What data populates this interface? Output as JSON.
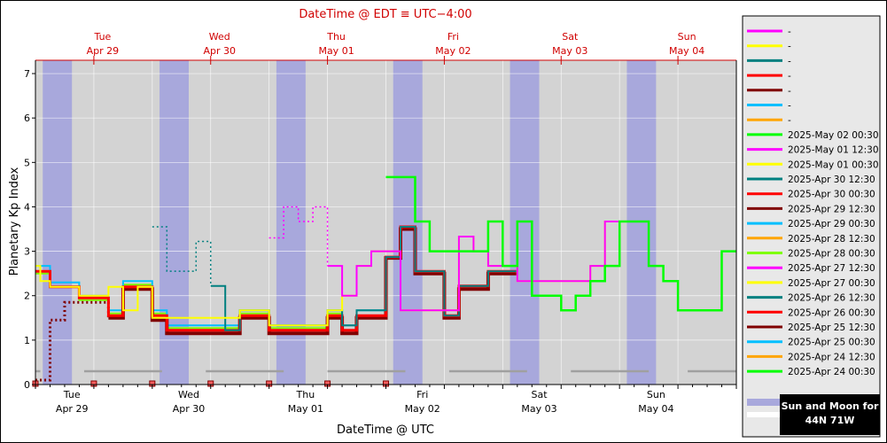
{
  "chart_data": {
    "type": "line",
    "title": "DateTime @ EDT ≡ UTC−4:00",
    "xlabel": "DateTime @ UTC",
    "ylabel": "Planetary Kp Index",
    "ylim": [
      0,
      7.3
    ],
    "y_ticks": [
      "0",
      "1",
      "2",
      "3",
      "4",
      "5",
      "6",
      "7"
    ],
    "x_range_hours": [
      0,
      144
    ],
    "top_ticks": [
      {
        "day": "Tue",
        "date": "Apr 29",
        "hour": 12
      },
      {
        "day": "Wed",
        "date": "Apr 30",
        "hour": 36
      },
      {
        "day": "Thu",
        "date": "May 01",
        "hour": 60
      },
      {
        "day": "Fri",
        "date": "May 02",
        "hour": 84
      },
      {
        "day": "Sat",
        "date": "May 03",
        "hour": 108
      },
      {
        "day": "Sun",
        "date": "May 04",
        "hour": 132
      }
    ],
    "bottom_ticks": [
      {
        "day": "Tue",
        "date": "Apr 29",
        "hour": 0
      },
      {
        "day": "Wed",
        "date": "Apr 30",
        "hour": 24
      },
      {
        "day": "Thu",
        "date": "May 01",
        "hour": 48
      },
      {
        "day": "Fri",
        "date": "May 02",
        "hour": 72
      },
      {
        "day": "Sat",
        "date": "May 03",
        "hour": 96
      },
      {
        "day": "Sun",
        "date": "May 04",
        "hour": 120
      }
    ],
    "night_bands_hours": [
      [
        1.5,
        7.5
      ],
      [
        25.5,
        31.5
      ],
      [
        49.5,
        55.5
      ],
      [
        73.5,
        79.5
      ],
      [
        97.5,
        103.5
      ],
      [
        121.5,
        127.5
      ]
    ],
    "legend": {
      "placeholder_entries": [
        {
          "name": "-",
          "color": "#ff00ff"
        },
        {
          "name": "-",
          "color": "#ffff00"
        },
        {
          "name": "-",
          "color": "#008080"
        },
        {
          "name": "-",
          "color": "#ff0000"
        },
        {
          "name": "-",
          "color": "#800000"
        },
        {
          "name": "-",
          "color": "#00bfff"
        },
        {
          "name": "-",
          "color": "#ffa500"
        }
      ],
      "footer_label_line1": "Sun and Moon for",
      "footer_label_line2": "44N 71W"
    },
    "series": [
      {
        "name": "2025-May 02 00:30",
        "color": "#00ff00",
        "style": "solid",
        "width": 2.5,
        "points": [
          [
            72,
            4.67
          ],
          [
            78,
            3.67
          ],
          [
            81,
            3.0
          ],
          [
            93,
            3.67
          ],
          [
            96,
            2.67
          ],
          [
            99,
            3.67
          ],
          [
            102,
            2.0
          ],
          [
            108,
            1.67
          ],
          [
            111,
            2.0
          ],
          [
            114,
            2.33
          ],
          [
            117,
            2.67
          ],
          [
            120,
            3.67
          ],
          [
            126,
            2.67
          ],
          [
            129,
            2.33
          ],
          [
            132,
            1.67
          ],
          [
            141,
            3.0
          ],
          [
            144,
            3.0
          ]
        ]
      },
      {
        "name": "2025-May 01 12:30",
        "color": "#ff00ff",
        "style": "mixed",
        "width": 2,
        "dotted_until": 60,
        "points": [
          [
            48,
            3.3
          ],
          [
            51,
            4.0
          ],
          [
            54,
            3.67
          ],
          [
            57,
            4.0
          ],
          [
            60,
            2.67
          ],
          [
            63,
            2.0
          ],
          [
            66,
            2.67
          ],
          [
            69,
            3.0
          ],
          [
            75,
            1.67
          ],
          [
            87,
            3.33
          ],
          [
            90,
            3.0
          ],
          [
            93,
            2.67
          ],
          [
            99,
            2.33
          ],
          [
            114,
            2.67
          ],
          [
            117,
            3.67
          ],
          [
            120,
            3.67
          ]
        ]
      },
      {
        "name": "2025-May 01 00:30",
        "color": "#ffff00",
        "style": "solid",
        "width": 2,
        "points": [
          [
            0,
            2.67
          ],
          [
            1,
            2.33
          ],
          [
            3,
            2.2
          ],
          [
            9,
            2.0
          ],
          [
            15,
            2.2
          ],
          [
            18,
            1.67
          ],
          [
            21,
            2.2
          ],
          [
            24,
            1.5
          ],
          [
            36,
            1.5
          ],
          [
            42,
            1.67
          ],
          [
            48,
            1.33
          ],
          [
            60,
            1.67
          ],
          [
            63,
            2.0
          ],
          [
            66,
            2.67
          ],
          [
            69,
            3.0
          ],
          [
            75,
            1.67
          ],
          [
            87,
            3.33
          ],
          [
            90,
            3.0
          ],
          [
            93,
            2.67
          ],
          [
            99,
            2.33
          ],
          [
            114,
            2.67
          ],
          [
            117,
            3.67
          ],
          [
            120,
            3.67
          ]
        ]
      },
      {
        "name": "2025-Apr 30 12:30",
        "color": "#008080",
        "style": "mixed",
        "width": 2,
        "dotted_until": 36,
        "points": [
          [
            24,
            3.55
          ],
          [
            27,
            2.55
          ],
          [
            33,
            3.22
          ],
          [
            36,
            2.22
          ],
          [
            39,
            1.22
          ],
          [
            42,
            1.67
          ],
          [
            48,
            1.33
          ],
          [
            60,
            1.67
          ],
          [
            63,
            1.33
          ],
          [
            66,
            1.67
          ],
          [
            72,
            2.87
          ],
          [
            75,
            3.55
          ],
          [
            78,
            2.55
          ],
          [
            84,
            1.55
          ],
          [
            87,
            2.22
          ],
          [
            93,
            2.55
          ],
          [
            96,
            2.55
          ]
        ]
      },
      {
        "name": "2025-Apr 30 00:30",
        "color": "#ff0000",
        "style": "solid",
        "width": 3,
        "points": [
          [
            0,
            2.55
          ],
          [
            3,
            2.2
          ],
          [
            9,
            1.95
          ],
          [
            15,
            1.55
          ],
          [
            18,
            2.2
          ],
          [
            24,
            1.55
          ],
          [
            27,
            1.22
          ],
          [
            42,
            1.55
          ],
          [
            48,
            1.22
          ],
          [
            60,
            1.55
          ],
          [
            63,
            1.22
          ],
          [
            66,
            1.55
          ],
          [
            72,
            2.87
          ],
          [
            75,
            3.55
          ],
          [
            78,
            2.55
          ],
          [
            84,
            1.55
          ],
          [
            87,
            2.22
          ],
          [
            93,
            2.55
          ],
          [
            96,
            2.55
          ]
        ]
      },
      {
        "name": "2025-Apr 29 12:30",
        "color": "#800000",
        "style": "mixed",
        "width": 4,
        "dotted_until": 12,
        "points": [
          [
            0,
            0.1
          ],
          [
            3,
            1.45
          ],
          [
            6,
            1.85
          ],
          [
            9,
            1.85
          ],
          [
            15,
            1.5
          ],
          [
            18,
            2.15
          ],
          [
            24,
            1.45
          ],
          [
            27,
            1.15
          ],
          [
            42,
            1.5
          ],
          [
            48,
            1.15
          ],
          [
            60,
            1.5
          ],
          [
            63,
            1.15
          ],
          [
            66,
            1.5
          ],
          [
            72,
            2.85
          ],
          [
            75,
            3.5
          ],
          [
            78,
            2.5
          ],
          [
            84,
            1.5
          ],
          [
            87,
            2.15
          ],
          [
            93,
            2.5
          ],
          [
            96,
            2.5
          ]
        ]
      },
      {
        "name": "2025-Apr 29 00:30",
        "color": "#00bfff",
        "style": "solid",
        "width": 2,
        "points": [
          [
            0,
            2.67
          ],
          [
            3,
            2.3
          ],
          [
            9,
            2.0
          ],
          [
            15,
            1.67
          ],
          [
            18,
            2.33
          ],
          [
            24,
            1.67
          ],
          [
            27,
            1.33
          ],
          [
            42,
            1.67
          ],
          [
            48,
            1.33
          ],
          [
            60,
            1.67
          ],
          [
            63,
            1.33
          ],
          [
            66,
            1.67
          ],
          [
            72,
            2.87
          ],
          [
            75,
            3.55
          ],
          [
            78,
            2.55
          ],
          [
            84,
            1.55
          ],
          [
            87,
            2.22
          ],
          [
            93,
            2.55
          ],
          [
            96,
            2.55
          ]
        ]
      },
      {
        "name": "2025-Apr 28 12:30",
        "color": "#ffa500",
        "style": "solid",
        "width": 2,
        "points": []
      },
      {
        "name": "2025-Apr 28 00:30",
        "color": "#7fff00",
        "style": "solid",
        "width": 2,
        "points": [
          [
            0,
            2.5
          ],
          [
            3,
            2.2
          ],
          [
            9,
            1.9
          ],
          [
            15,
            1.6
          ],
          [
            18,
            2.25
          ],
          [
            24,
            1.6
          ],
          [
            27,
            1.27
          ],
          [
            42,
            1.6
          ],
          [
            48,
            1.27
          ],
          [
            60,
            1.6
          ]
        ]
      },
      {
        "name": "2025-Apr 27 12:30",
        "color": "#ff00ff",
        "style": "solid",
        "width": 2,
        "points": []
      },
      {
        "name": "2025-Apr 27 00:30",
        "color": "#ffff00",
        "style": "solid",
        "width": 2,
        "points": []
      },
      {
        "name": "2025-Apr 26 12:30",
        "color": "#008080",
        "style": "solid",
        "width": 2,
        "points": []
      },
      {
        "name": "2025-Apr 26 00:30",
        "color": "#ff0000",
        "style": "solid",
        "width": 2,
        "points": []
      },
      {
        "name": "2025-Apr 25 12:30",
        "color": "#800000",
        "style": "solid",
        "width": 2,
        "points": []
      },
      {
        "name": "2025-Apr 25 00:30",
        "color": "#00bfff",
        "style": "solid",
        "width": 2,
        "points": []
      },
      {
        "name": "2025-Apr 24 12:30",
        "color": "#ffa500",
        "style": "solid",
        "width": 2,
        "points": []
      },
      {
        "name": "2025-Apr 24 00:30",
        "color": "#00ff00",
        "style": "solid",
        "width": 2,
        "points": []
      }
    ],
    "moon_segments_hours": [
      [
        -0.5,
        1
      ],
      [
        10,
        26
      ],
      [
        35,
        51
      ],
      [
        60,
        76
      ],
      [
        85,
        101
      ],
      [
        110,
        126
      ],
      [
        134,
        144
      ]
    ],
    "sun_markers_hours": [
      0,
      12,
      24,
      36,
      48,
      60,
      72
    ]
  }
}
